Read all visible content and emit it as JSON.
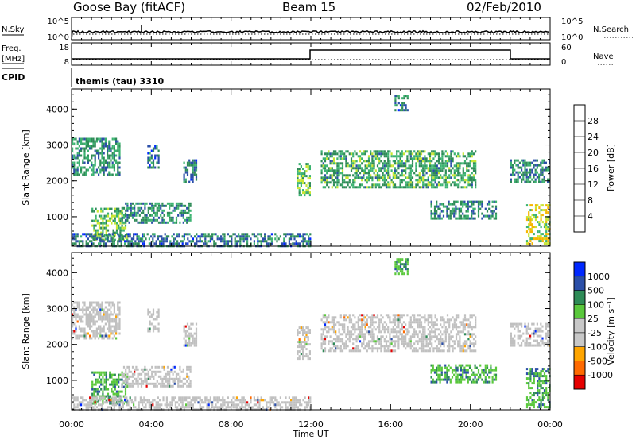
{
  "header": {
    "station": "Goose Bay (fitACF)",
    "beam": "Beam 15",
    "date": "02/Feb/2010"
  },
  "panels": {
    "nsky": {
      "left_label": "N.Sky",
      "right_label": "N.Search",
      "left_ticks": [
        "10^5",
        "10^0"
      ],
      "right_ticks": [
        "10^5",
        "10^0"
      ]
    },
    "freq": {
      "left_label_1": "Freq.",
      "left_label_2": "[MHz]",
      "right_label": "Nave",
      "left_ticks": [
        "18",
        "8"
      ],
      "right_ticks": [
        "60",
        "0"
      ]
    },
    "cpid": {
      "label": "CPID",
      "value": "themis (tau) 3310"
    }
  },
  "colors": {
    "power": [
      "#0028ff",
      "#2b4fa8",
      "#2e8b57",
      "#3cb371",
      "#c8e632",
      "#f5b700",
      "#ff6a00",
      "#e60000"
    ],
    "velocity": [
      "#e60000",
      "#ff6a00",
      "#ffa500",
      "#c8c8c8",
      "#c8c8c8",
      "#5ac83c",
      "#2e8b57",
      "#2b4fa8",
      "#0028ff"
    ],
    "ground_scatter": "#c0c0c0"
  },
  "chart_data": [
    {
      "type": "heatmap",
      "name": "power",
      "xlabel": "",
      "ylabel": "Slant Range [km]",
      "xlim": [
        "00:00",
        "24:00"
      ],
      "ylim": [
        180,
        4560
      ],
      "y_ticks": [
        "1000",
        "2000",
        "3000",
        "4000"
      ],
      "colorbar": {
        "label": "Power [dB]",
        "range": [
          0,
          32
        ],
        "tick_labels": [
          "4",
          "8",
          "12",
          "16",
          "20",
          "24",
          "28"
        ]
      },
      "regions": [
        {
          "t0": 0.0,
          "t1": 2.4,
          "r0": 2150,
          "r1": 3200,
          "value": 10
        },
        {
          "t0": 3.8,
          "t1": 4.4,
          "r0": 2400,
          "r1": 3000,
          "value": 8
        },
        {
          "t0": 5.6,
          "t1": 6.3,
          "r0": 2000,
          "r1": 2600,
          "value": 8
        },
        {
          "t0": 11.3,
          "t1": 12.0,
          "r0": 1600,
          "r1": 2500,
          "value": 14
        },
        {
          "t0": 12.5,
          "t1": 20.3,
          "r0": 1850,
          "r1": 2850,
          "value": 12
        },
        {
          "t0": 16.2,
          "t1": 16.9,
          "r0": 4000,
          "r1": 4400,
          "value": 8
        },
        {
          "t0": 22.0,
          "t1": 24.0,
          "r0": 1950,
          "r1": 2600,
          "value": 10
        },
        {
          "t0": 1.0,
          "t1": 2.8,
          "r0": 350,
          "r1": 1250,
          "value": 14
        },
        {
          "t0": 2.5,
          "t1": 6.0,
          "r0": 850,
          "r1": 1400,
          "value": 10
        },
        {
          "t0": 0.0,
          "t1": 12.0,
          "r0": 180,
          "r1": 550,
          "value": 8
        },
        {
          "t0": 18.0,
          "t1": 21.3,
          "r0": 950,
          "r1": 1450,
          "value": 10
        },
        {
          "t0": 22.8,
          "t1": 24.0,
          "r0": 250,
          "r1": 1350,
          "value": 18
        }
      ]
    },
    {
      "type": "heatmap",
      "name": "velocity",
      "xlabel": "Time UT",
      "ylabel": "Slant Range [km]",
      "xlim": [
        "00:00",
        "24:00"
      ],
      "ylim": [
        180,
        4560
      ],
      "x_ticks": [
        "00:00",
        "04:00",
        "08:00",
        "12:00",
        "16:00",
        "20:00",
        "00:00"
      ],
      "y_ticks": [
        "1000",
        "2000",
        "3000",
        "4000"
      ],
      "colorbar": {
        "label": "Velocity [m s⁻¹]",
        "tick_labels": [
          "1000",
          "500",
          "100",
          "25",
          "-25",
          "-100",
          "-500",
          "-1000"
        ]
      },
      "regions": [
        {
          "t0": 0.0,
          "t1": 2.4,
          "r0": 2150,
          "r1": 3200,
          "value": "ground"
        },
        {
          "t0": 3.8,
          "t1": 4.4,
          "r0": 2400,
          "r1": 3000,
          "value": "ground"
        },
        {
          "t0": 5.6,
          "t1": 6.3,
          "r0": 2000,
          "r1": 2600,
          "value": "ground"
        },
        {
          "t0": 11.3,
          "t1": 12.0,
          "r0": 1600,
          "r1": 2500,
          "value": "ground"
        },
        {
          "t0": 12.5,
          "t1": 20.3,
          "r0": 1850,
          "r1": 2850,
          "value": "ground"
        },
        {
          "t0": 16.2,
          "t1": 16.9,
          "r0": 4000,
          "r1": 4400,
          "value": 150
        },
        {
          "t0": 22.0,
          "t1": 24.0,
          "r0": 1950,
          "r1": 2600,
          "value": "ground"
        },
        {
          "t0": 1.0,
          "t1": 2.8,
          "r0": 350,
          "r1": 1250,
          "value": 200
        },
        {
          "t0": 2.5,
          "t1": 6.0,
          "r0": 850,
          "r1": 1400,
          "value": "ground"
        },
        {
          "t0": 0.0,
          "t1": 12.0,
          "r0": 180,
          "r1": 550,
          "value": "ground"
        },
        {
          "t0": 18.0,
          "t1": 21.3,
          "r0": 950,
          "r1": 1450,
          "value": 150
        },
        {
          "t0": 22.8,
          "t1": 24.0,
          "r0": 250,
          "r1": 1350,
          "value": 300
        }
      ]
    }
  ]
}
